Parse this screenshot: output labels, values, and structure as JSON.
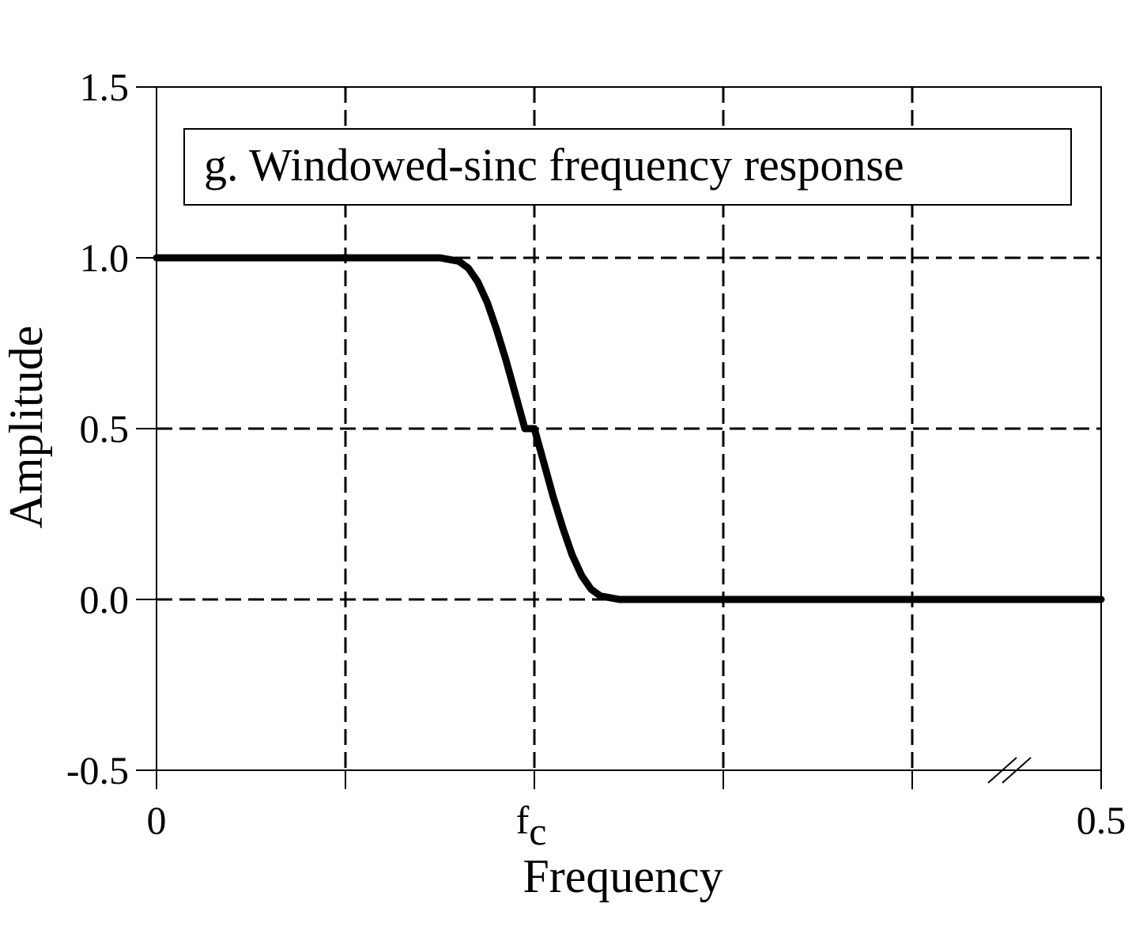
{
  "chart_data": {
    "type": "line",
    "title": "g. Windowed-sinc frequency response",
    "xlabel": "Frequency",
    "ylabel": "Amplitude",
    "xlim": [
      0,
      0.5
    ],
    "ylim": [
      -0.5,
      1.5
    ],
    "grid": true,
    "axis_break": true,
    "y_ticks": [
      {
        "value": 1.5,
        "label": "1.5"
      },
      {
        "value": 1.0,
        "label": "1.0"
      },
      {
        "value": 0.5,
        "label": "0.5"
      },
      {
        "value": 0.0,
        "label": "0.0"
      },
      {
        "value": -0.5,
        "label": "-0.5"
      }
    ],
    "x_ticks": [
      {
        "value": 0,
        "label": "0"
      },
      {
        "value": 0.1,
        "label": ""
      },
      {
        "value": 0.2,
        "label": "f",
        "subscript": "c"
      },
      {
        "value": 0.3,
        "label": ""
      },
      {
        "value": 0.4,
        "label": ""
      },
      {
        "value": 0.5,
        "label": "0.5"
      }
    ],
    "series": [
      {
        "x": [
          0,
          0.05,
          0.1,
          0.14,
          0.15,
          0.155,
          0.16,
          0.165,
          0.17,
          0.175,
          0.18,
          0.185,
          0.19,
          0.195,
          0.2,
          0.205,
          0.21,
          0.215,
          0.22,
          0.225,
          0.23,
          0.235,
          0.24,
          0.245,
          0.25,
          0.26,
          0.3,
          0.4,
          0.5
        ],
        "y": [
          1.0,
          1.0,
          1.0,
          1.0,
          1.0,
          0.995,
          0.99,
          0.97,
          0.93,
          0.87,
          0.79,
          0.7,
          0.6,
          0.5,
          0.5,
          0.4,
          0.3,
          0.21,
          0.13,
          0.07,
          0.03,
          0.01,
          0.005,
          0.0,
          0.0,
          0.0,
          0.0,
          0.0,
          0.0
        ]
      }
    ]
  }
}
